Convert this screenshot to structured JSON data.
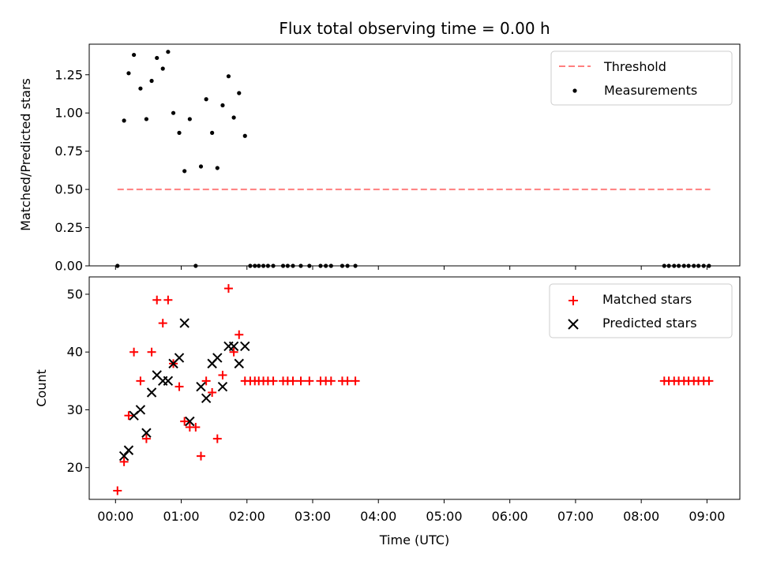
{
  "chart_data": {
    "type": "scatter",
    "title": "Flux total observing time = 0.00 h",
    "xlabel": "Time (UTC)",
    "x_unit": "hours UTC",
    "xlim": [
      -0.4,
      9.5
    ],
    "xticks": [
      {
        "value": 0,
        "label": "00:00"
      },
      {
        "value": 1,
        "label": "01:00"
      },
      {
        "value": 2,
        "label": "02:00"
      },
      {
        "value": 3,
        "label": "03:00"
      },
      {
        "value": 4,
        "label": "04:00"
      },
      {
        "value": 5,
        "label": "05:00"
      },
      {
        "value": 6,
        "label": "06:00"
      },
      {
        "value": 7,
        "label": "07:00"
      },
      {
        "value": 8,
        "label": "08:00"
      },
      {
        "value": 9,
        "label": "09:00"
      }
    ],
    "panels": [
      {
        "id": "ratio",
        "ylabel": "Matched/Predicted stars",
        "ylim": [
          0,
          1.45
        ],
        "yticks": [
          {
            "value": 0,
            "label": "0.00"
          },
          {
            "value": 0.25,
            "label": "0.25"
          },
          {
            "value": 0.5,
            "label": "0.50"
          },
          {
            "value": 0.75,
            "label": "0.75"
          },
          {
            "value": 1.0,
            "label": "1.00"
          },
          {
            "value": 1.25,
            "label": "1.25"
          }
        ],
        "legend": {
          "placement": "upper right",
          "entries": [
            "Threshold",
            "Measurements"
          ]
        },
        "series": [
          {
            "name": "Threshold",
            "kind": "dashed-line",
            "color": "#ff7f7f",
            "x": [
              0.03,
              9.05
            ],
            "y": [
              0.5,
              0.5
            ]
          },
          {
            "name": "Measurements",
            "kind": "dot",
            "color": "#000000",
            "x": [
              0.03,
              0.13,
              0.2,
              0.28,
              0.38,
              0.47,
              0.55,
              0.63,
              0.72,
              0.8,
              0.88,
              0.97,
              1.05,
              1.13,
              1.22,
              1.3,
              1.38,
              1.47,
              1.55,
              1.63,
              1.72,
              1.8,
              1.88,
              1.97,
              2.05,
              2.12,
              2.18,
              2.25,
              2.32,
              2.4,
              2.55,
              2.62,
              2.7,
              2.82,
              2.95,
              3.12,
              3.2,
              3.28,
              3.45,
              3.53,
              3.65,
              8.35,
              8.42,
              8.5,
              8.57,
              8.65,
              8.72,
              8.8,
              8.87,
              8.95,
              9.03
            ],
            "y": [
              0.0,
              0.95,
              1.26,
              1.38,
              1.16,
              0.96,
              1.21,
              1.36,
              1.29,
              1.4,
              1.0,
              0.87,
              0.62,
              0.96,
              0.0,
              0.65,
              1.09,
              0.87,
              0.64,
              1.05,
              1.24,
              0.97,
              1.13,
              0.85,
              0,
              0,
              0,
              0,
              0,
              0,
              0,
              0,
              0,
              0,
              0,
              0,
              0,
              0,
              0,
              0,
              0,
              0,
              0,
              0,
              0,
              0,
              0,
              0,
              0,
              0,
              0
            ]
          }
        ]
      },
      {
        "id": "counts",
        "ylabel": "Count",
        "ylim": [
          14.5,
          53
        ],
        "yticks": [
          {
            "value": 20,
            "label": "20"
          },
          {
            "value": 30,
            "label": "30"
          },
          {
            "value": 40,
            "label": "40"
          },
          {
            "value": 50,
            "label": "50"
          }
        ],
        "legend": {
          "placement": "upper right",
          "entries": [
            "Matched stars",
            "Predicted stars"
          ]
        },
        "series": [
          {
            "name": "Matched stars",
            "kind": "plus",
            "color": "#ff0000",
            "x": [
              0.03,
              0.13,
              0.2,
              0.28,
              0.38,
              0.47,
              0.55,
              0.63,
              0.72,
              0.8,
              0.88,
              0.97,
              1.05,
              1.13,
              1.22,
              1.3,
              1.38,
              1.47,
              1.55,
              1.63,
              1.72,
              1.8,
              1.88,
              1.97,
              2.05,
              2.12,
              2.18,
              2.25,
              2.32,
              2.4,
              2.55,
              2.62,
              2.7,
              2.82,
              2.95,
              3.12,
              3.2,
              3.28,
              3.45,
              3.53,
              3.65,
              8.35,
              8.42,
              8.5,
              8.57,
              8.65,
              8.72,
              8.8,
              8.87,
              8.95,
              9.03
            ],
            "y": [
              16,
              21,
              29,
              40,
              35,
              25,
              40,
              49,
              45,
              49,
              38,
              34,
              28,
              27,
              27,
              22,
              35,
              33,
              25,
              36,
              51,
              40,
              43,
              35,
              35,
              35,
              35,
              35,
              35,
              35,
              35,
              35,
              35,
              35,
              35,
              35,
              35,
              35,
              35,
              35,
              35,
              35,
              35,
              35,
              35,
              35,
              35,
              35,
              35,
              35,
              35
            ]
          },
          {
            "name": "Predicted stars",
            "kind": "x",
            "color": "#000000",
            "x": [
              0.13,
              0.2,
              0.28,
              0.38,
              0.47,
              0.55,
              0.63,
              0.72,
              0.8,
              0.88,
              0.97,
              1.05,
              1.13,
              1.3,
              1.38,
              1.47,
              1.55,
              1.63,
              1.72,
              1.8,
              1.88,
              1.97
            ],
            "y": [
              22,
              23,
              29,
              30,
              26,
              33,
              36,
              35,
              35,
              38,
              39,
              45,
              28,
              34,
              32,
              38,
              39,
              34,
              41,
              41,
              38,
              41
            ]
          }
        ]
      }
    ]
  }
}
